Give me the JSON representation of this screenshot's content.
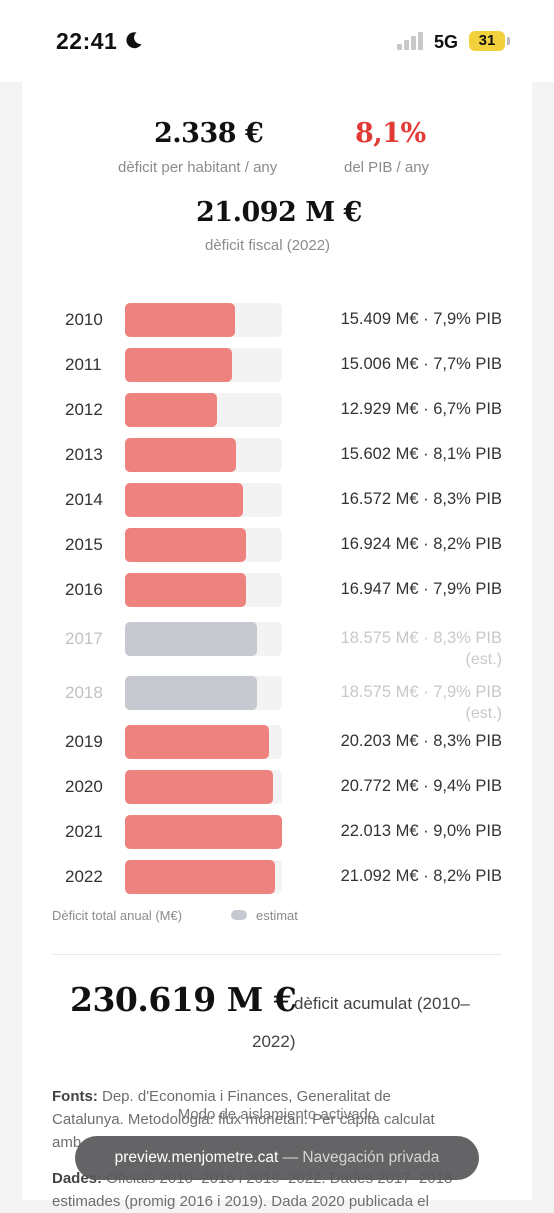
{
  "status_bar": {
    "time": "22:41",
    "network": "5G",
    "battery": "31"
  },
  "stats": {
    "per_capita_value": "2.338 €",
    "per_capita_label": "dèficit per habitant / any",
    "gdp_value": "8,1%",
    "gdp_label": "del PIB / any",
    "fiscal_value": "21.092 M €",
    "fiscal_label": "dèficit fiscal (2022)"
  },
  "colors": {
    "accent_red": "#e23b36",
    "bar_actual": "#ee827f",
    "bar_estimate": "#c6c9d0"
  },
  "chart_data": {
    "type": "bar",
    "orientation": "horizontal",
    "xlabel": "Dèficit total anual (M€)",
    "legend": [
      "estimat"
    ],
    "categories": [
      "2010",
      "2011",
      "2012",
      "2013",
      "2014",
      "2015",
      "2016",
      "2017",
      "2018",
      "2019",
      "2020",
      "2021",
      "2022"
    ],
    "values": [
      15409,
      15006,
      12929,
      15602,
      16572,
      16924,
      16947,
      18575,
      18575,
      20203,
      20772,
      22013,
      21092
    ],
    "max": 22013,
    "rows": [
      {
        "year": "2010",
        "value": 15409,
        "label": "15.409 M€ · 7,9% PIB",
        "estimate": false
      },
      {
        "year": "2011",
        "value": 15006,
        "label": "15.006 M€ · 7,7% PIB",
        "estimate": false
      },
      {
        "year": "2012",
        "value": 12929,
        "label": "12.929 M€ · 6,7% PIB",
        "estimate": false
      },
      {
        "year": "2013",
        "value": 15602,
        "label": "15.602 M€ · 8,1% PIB",
        "estimate": false
      },
      {
        "year": "2014",
        "value": 16572,
        "label": "16.572 M€ · 8,3% PIB",
        "estimate": false
      },
      {
        "year": "2015",
        "value": 16924,
        "label": "16.924 M€ · 8,2% PIB",
        "estimate": false
      },
      {
        "year": "2016",
        "value": 16947,
        "label": "16.947 M€ · 7,9% PIB",
        "estimate": false
      },
      {
        "year": "2017",
        "value": 18575,
        "label": "18.575 M€ · 8,3% PIB",
        "note": "(est.)",
        "estimate": true
      },
      {
        "year": "2018",
        "value": 18575,
        "label": "18.575 M€ · 7,9% PIB",
        "note": "(est.)",
        "estimate": true
      },
      {
        "year": "2019",
        "value": 20203,
        "label": "20.203 M€ · 8,3% PIB",
        "estimate": false
      },
      {
        "year": "2020",
        "value": 20772,
        "label": "20.772 M€ · 9,4% PIB",
        "estimate": false
      },
      {
        "year": "2021",
        "value": 22013,
        "label": "22.013 M€ · 9,0% PIB",
        "estimate": false
      },
      {
        "year": "2022",
        "value": 21092,
        "label": "21.092 M€ · 8,2% PIB",
        "estimate": false
      }
    ]
  },
  "cumulative": {
    "value": "230.619 M €",
    "label_line1": "dèficit acumulat (2010–",
    "label_line2": "2022)"
  },
  "footer": {
    "sources_heading": "Fonts:",
    "sources_line1": "Dep. d'Economia i Finances, Generalitat de",
    "sources_line2": "Catalunya. Metodologia: flux monetari. Per càpita calculat",
    "sources_line3": "amb",
    "data_heading": "Dades:",
    "data_line1": "Oficials 2010–2016 i 2019–2022. Dades 2017–2018",
    "data_line2": "estimades (promig 2016 i 2019). Dada 2020 publicada el"
  },
  "overlay": {
    "text": "Modo de aislamiento activado"
  },
  "url_bar": {
    "domain": "preview.menjometre.cat",
    "mode": "— Navegación privada"
  }
}
